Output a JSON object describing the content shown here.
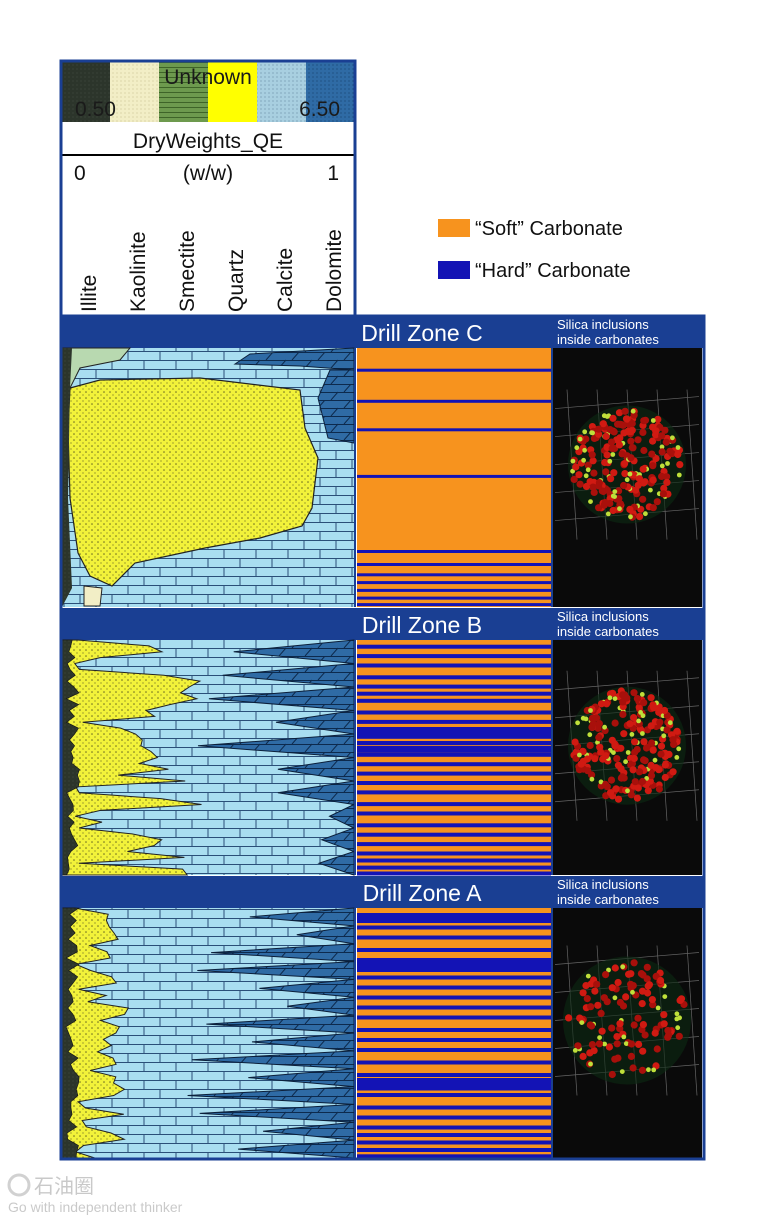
{
  "legend": {
    "unknown_label": "Unknown",
    "scale_min": "0.50",
    "scale_max": "6.50",
    "track_title": "DryWeights_QE",
    "axis_min": "0",
    "axis_unit": "(w/w)",
    "axis_max": "1",
    "minerals": [
      "Illite",
      "Kaolinite",
      "Smectite",
      "Quartz",
      "Calcite",
      "Dolomite"
    ]
  },
  "key": {
    "soft_label": "“Soft” Carbonate",
    "hard_label": "“Hard” Carbonate"
  },
  "colors": {
    "frame": "#1a3f93",
    "soft": "#f7931e",
    "hard": "#1313b5",
    "quartz": "#f2f23a",
    "calcite": "#a9def0",
    "dolomite": "#2f6ba5",
    "illite": "#2c352b",
    "kaolinite": "#f2eec6",
    "smectite": "#6d9a4e"
  },
  "zones": [
    {
      "title": "Drill Zone C",
      "silica_line1": "Silica inclusions",
      "silica_line2": "inside carbonates"
    },
    {
      "title": "Drill Zone B",
      "silica_line1": "Silica inclusions",
      "silica_line2": "inside carbonates"
    },
    {
      "title": "Drill Zone A",
      "silica_line1": "Silica inclusions",
      "silica_line2": "inside carbonates"
    }
  ],
  "watermark": {
    "logo_text": "石油圈",
    "tagline": "Go with independent thinker"
  }
}
